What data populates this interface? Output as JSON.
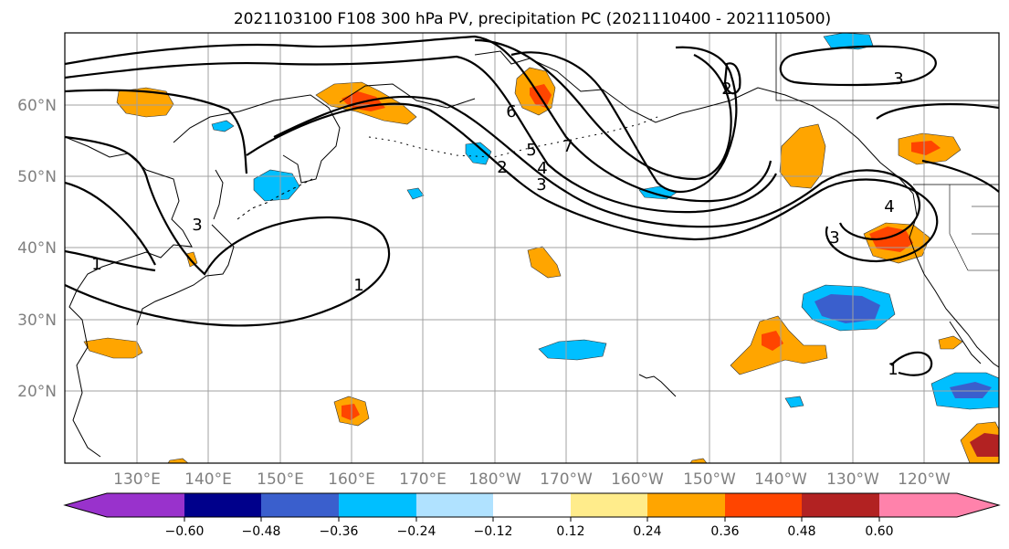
{
  "title": "2021103100 F108 300 hPa PV, precipitation PC (2021110400 - 2021110500)",
  "map": {
    "lat_labels": [
      "60°N",
      "50°N",
      "40°N",
      "30°N",
      "20°N"
    ],
    "lon_labels": [
      "130°E",
      "140°E",
      "150°E",
      "160°E",
      "170°E",
      "180°W",
      "170°W",
      "160°W",
      "150°W",
      "140°W",
      "130°W",
      "120°W"
    ],
    "contour_labels": [
      "1",
      "2",
      "3",
      "4",
      "5",
      "6",
      "7",
      "1",
      "2",
      "3",
      "4",
      "3",
      "1",
      "3"
    ]
  },
  "colorbar": {
    "tick_labels": [
      "−0.60",
      "−0.48",
      "−0.36",
      "−0.24",
      "−0.12",
      "0.12",
      "0.24",
      "0.36",
      "0.48",
      "0.60"
    ],
    "colors": [
      "#9932cc",
      "#00008b",
      "#3a5fcd",
      "#00bfff",
      "#b0e2ff",
      "#ffffff",
      "#ffec8b",
      "#ffa500",
      "#ff4500",
      "#b22222",
      "#ff82ab"
    ]
  }
}
